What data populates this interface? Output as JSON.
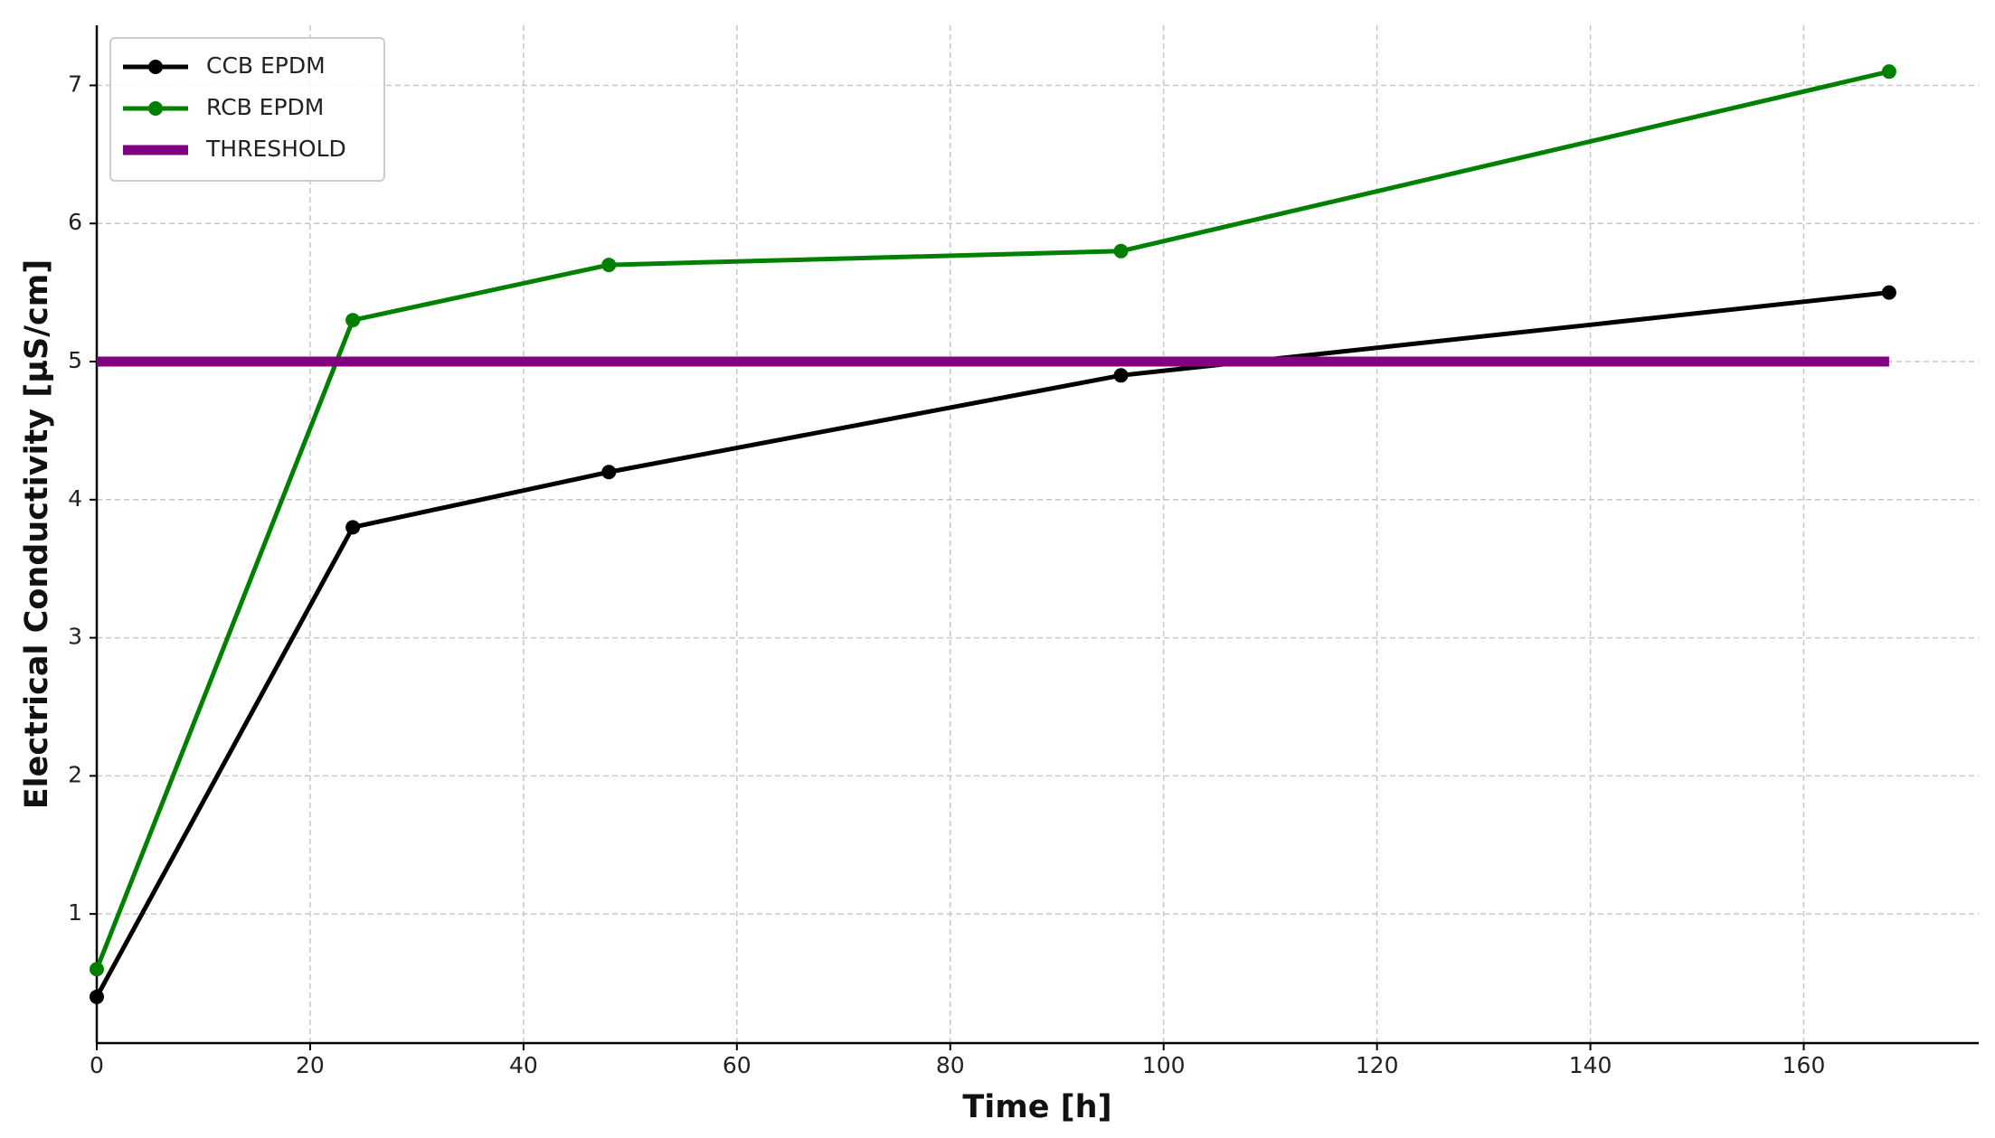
{
  "chart_data": {
    "type": "line",
    "xlabel": "Time [h]",
    "ylabel": "Electrical Conductivity [µS/cm]",
    "x": [
      0,
      24,
      48,
      96,
      168
    ],
    "series": [
      {
        "name": "CCB EPDM",
        "color": "#000000",
        "values": [
          0.4,
          3.8,
          4.2,
          4.9,
          5.5
        ],
        "marker": true
      },
      {
        "name": "RCB EPDM",
        "color": "#008000",
        "values": [
          0.6,
          5.3,
          5.7,
          5.8,
          7.1
        ],
        "marker": true
      },
      {
        "name": "THRESHOLD",
        "color": "#800080",
        "values": [
          5,
          5,
          5,
          5,
          5
        ],
        "marker": false
      }
    ],
    "xlim": [
      0,
      176.4
    ],
    "ylim": [
      0.065,
      7.435
    ],
    "xticks": [
      0,
      20,
      40,
      60,
      80,
      100,
      120,
      140,
      160
    ],
    "yticks": [
      1,
      2,
      3,
      4,
      5,
      6,
      7
    ],
    "grid": true,
    "legend": "upper left"
  }
}
